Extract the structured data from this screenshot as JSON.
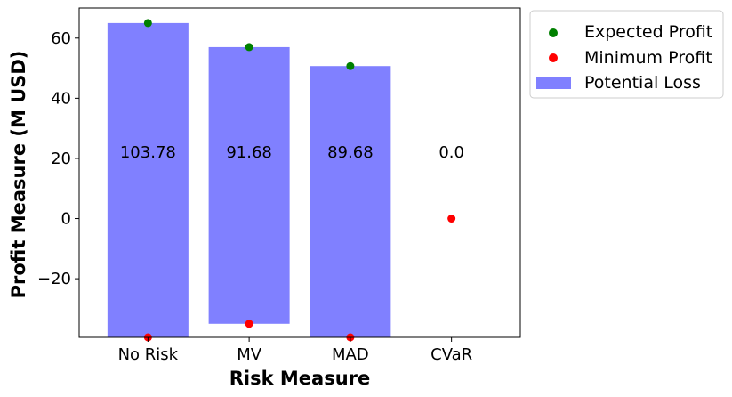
{
  "chart_data": {
    "type": "bar",
    "xlabel": "Risk Measure",
    "ylabel": "Profit Measure (M USD)",
    "categories": [
      "No Risk",
      "MV",
      "MAD",
      "CVaR"
    ],
    "ylim": [
      -39.5,
      70
    ],
    "yticks": [
      -20,
      0,
      20,
      40,
      60
    ],
    "ytick_labels": [
      "−20",
      "0",
      "20",
      "40",
      "60"
    ],
    "bar_labels": [
      "103.78",
      "91.68",
      "89.68",
      "0.0"
    ],
    "label_y": 22,
    "series": [
      {
        "name": "Potential Loss",
        "kind": "bar",
        "color": "#8080ff",
        "top": [
          65,
          57,
          50.7,
          0
        ],
        "bottom": [
          -39.5,
          -35,
          -39.5,
          0
        ]
      },
      {
        "name": "Expected Profit",
        "kind": "scatter",
        "color": "#008000",
        "values": [
          65,
          57,
          50.7,
          null
        ]
      },
      {
        "name": "Minimum Profit",
        "kind": "scatter",
        "color": "#ff0000",
        "values": [
          -39.5,
          -35,
          -39.5,
          0
        ]
      }
    ],
    "legend": {
      "placement": "outside-right-top",
      "entries": [
        "Expected Profit",
        "Minimum Profit",
        "Potential Loss"
      ]
    },
    "grid": false
  }
}
